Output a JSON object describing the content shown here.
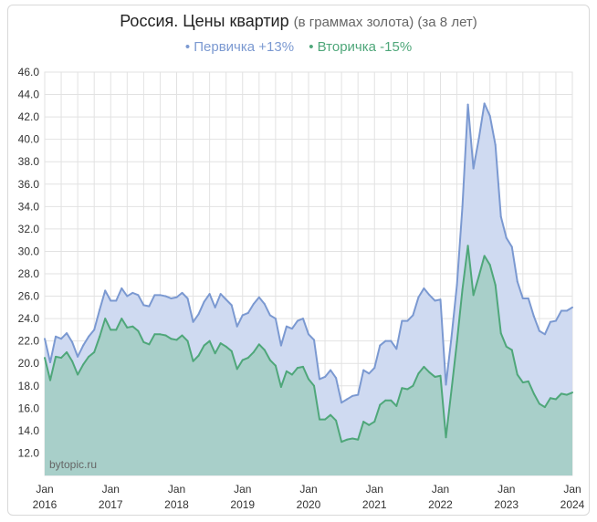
{
  "title": {
    "main": "Россия. Цены квартир",
    "sub": "(в граммах золота) (за 8 лет)"
  },
  "legend": [
    {
      "label": "• Первичка +13%",
      "color": "#7b99d1"
    },
    {
      "label": "• Вторичка -15%",
      "color": "#4fa77a"
    }
  ],
  "watermark": "bytopic.ru",
  "chart_data": {
    "type": "area",
    "title": "Россия. Цены квартир",
    "subtitle": "(в граммах золота) (за 8 лет)",
    "ylim": [
      10.0,
      46.0
    ],
    "y_ticks": [
      "46.0",
      "44.0",
      "42.0",
      "40.0",
      "38.0",
      "36.0",
      "34.0",
      "32.0",
      "30.0",
      "28.0",
      "26.0",
      "24.0",
      "22.0",
      "20.0",
      "18.0",
      "16.0",
      "14.0",
      "12.0"
    ],
    "x_start": "2016-01",
    "x_ticks": [
      {
        "label_top": "Jan",
        "label_bottom": "2016"
      },
      {
        "label_top": "Jan",
        "label_bottom": "2017"
      },
      {
        "label_top": "Jan",
        "label_bottom": "2018"
      },
      {
        "label_top": "Jan",
        "label_bottom": "2019"
      },
      {
        "label_top": "Jan",
        "label_bottom": "2020"
      },
      {
        "label_top": "Jan",
        "label_bottom": "2021"
      },
      {
        "label_top": "Jan",
        "label_bottom": "2022"
      },
      {
        "label_top": "Jan",
        "label_bottom": "2023"
      },
      {
        "label_top": "Jan",
        "label_bottom": "2024"
      }
    ],
    "grid": true,
    "series": [
      {
        "name": "Первичка +13%",
        "color": "#7b99d1",
        "fill": "#cfdaf1",
        "values": [
          22.2,
          20.1,
          22.4,
          22.2,
          22.7,
          21.9,
          20.6,
          21.6,
          22.4,
          23.0,
          24.8,
          26.5,
          25.6,
          25.6,
          26.7,
          26.0,
          26.3,
          26.1,
          25.2,
          25.1,
          26.1,
          26.1,
          26.0,
          25.8,
          25.9,
          26.3,
          25.8,
          23.7,
          24.4,
          25.5,
          26.2,
          25.0,
          26.2,
          25.7,
          25.2,
          23.3,
          24.3,
          24.5,
          25.3,
          25.9,
          25.3,
          24.3,
          24.0,
          21.6,
          23.3,
          23.1,
          23.8,
          24.0,
          22.6,
          22.1,
          18.6,
          18.8,
          19.4,
          18.7,
          16.5,
          16.8,
          17.1,
          17.2,
          19.4,
          19.1,
          19.6,
          21.6,
          22.0,
          22.0,
          21.3,
          23.8,
          23.8,
          24.3,
          25.9,
          26.7,
          26.1,
          25.6,
          25.7,
          18.1,
          22.3,
          27.0,
          34.0,
          43.1,
          37.4,
          40.1,
          43.2,
          42.1,
          39.5,
          33.1,
          31.2,
          30.4,
          27.3,
          25.8,
          25.8,
          24.2,
          22.9,
          22.6,
          23.7,
          23.8,
          24.7,
          24.7,
          25.0
        ]
      },
      {
        "name": "Вторичка -15%",
        "color": "#4fa77a",
        "fill": "#a8cfc9",
        "values": [
          20.5,
          18.5,
          20.6,
          20.5,
          21.0,
          20.2,
          19.0,
          19.9,
          20.6,
          21.0,
          22.4,
          24.0,
          23.0,
          23.0,
          24.0,
          23.2,
          23.3,
          22.9,
          21.9,
          21.7,
          22.6,
          22.6,
          22.5,
          22.2,
          22.1,
          22.5,
          22.0,
          20.2,
          20.7,
          21.6,
          22.0,
          20.9,
          21.8,
          21.5,
          21.1,
          19.5,
          20.3,
          20.5,
          21.0,
          21.7,
          21.2,
          20.3,
          19.8,
          17.9,
          19.3,
          19.0,
          19.6,
          19.7,
          18.6,
          18.0,
          15.0,
          15.0,
          15.4,
          14.9,
          13.0,
          13.2,
          13.3,
          13.2,
          14.8,
          14.5,
          14.8,
          16.3,
          16.7,
          16.7,
          16.2,
          17.8,
          17.7,
          18.0,
          19.1,
          19.7,
          19.2,
          18.8,
          18.9,
          13.4,
          17.6,
          21.9,
          26.6,
          30.5,
          26.1,
          27.8,
          29.6,
          28.8,
          27.0,
          22.7,
          21.5,
          21.2,
          19.0,
          18.3,
          18.4,
          17.3,
          16.4,
          16.1,
          16.9,
          16.8,
          17.3,
          17.2,
          17.4
        ]
      }
    ]
  }
}
